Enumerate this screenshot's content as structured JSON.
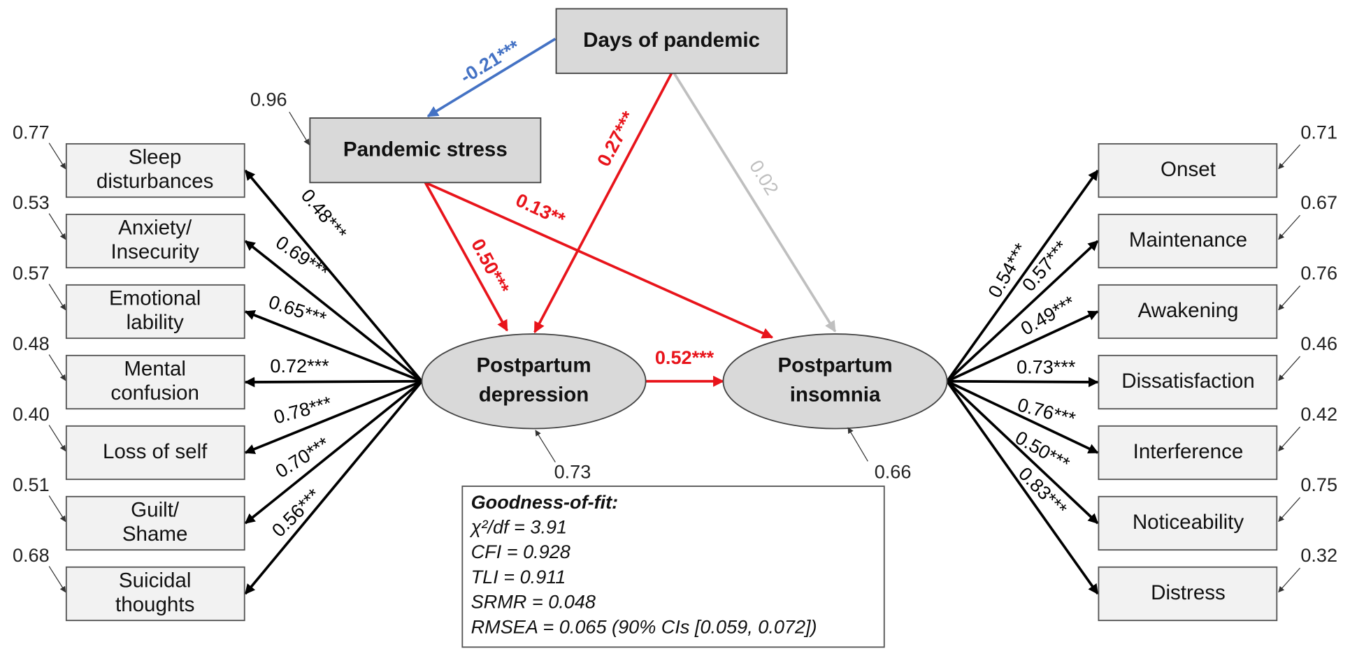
{
  "observed": [
    {
      "label": [
        "Days of pandemic"
      ]
    },
    {
      "label": [
        "Pandemic stress"
      ],
      "residual": "0.96"
    }
  ],
  "latent": [
    {
      "label": [
        "Postpartum",
        "depression"
      ],
      "residual": "0.73"
    },
    {
      "label": [
        "Postpartum",
        "insomnia"
      ],
      "residual": "0.66"
    }
  ],
  "indicators_left": [
    {
      "label": [
        "Sleep",
        "disturbances"
      ],
      "loading": "0.48***",
      "residual": "0.77"
    },
    {
      "label": [
        "Anxiety/",
        "Insecurity"
      ],
      "loading": "0.69***",
      "residual": "0.53"
    },
    {
      "label": [
        "Emotional",
        "lability"
      ],
      "loading": "0.65***",
      "residual": "0.57"
    },
    {
      "label": [
        "Mental",
        "confusion"
      ],
      "loading": "0.72***",
      "residual": "0.48"
    },
    {
      "label": [
        "Loss of self"
      ],
      "loading": "0.78***",
      "residual": "0.40"
    },
    {
      "label": [
        "Guilt/",
        "Shame"
      ],
      "loading": "0.70***",
      "residual": "0.51"
    },
    {
      "label": [
        "Suicidal",
        "thoughts"
      ],
      "loading": "0.56***",
      "residual": "0.68"
    }
  ],
  "indicators_right": [
    {
      "label": [
        "Onset"
      ],
      "loading": "0.54***",
      "residual": "0.71"
    },
    {
      "label": [
        "Maintenance"
      ],
      "loading": "0.57***",
      "residual": "0.67"
    },
    {
      "label": [
        "Awakening"
      ],
      "loading": "0.49***",
      "residual": "0.76"
    },
    {
      "label": [
        "Dissatisfaction"
      ],
      "loading": "0.73***",
      "residual": "0.46"
    },
    {
      "label": [
        "Interference"
      ],
      "loading": "0.76***",
      "residual": "0.42"
    },
    {
      "label": [
        "Noticeability"
      ],
      "loading": "0.50***",
      "residual": "0.75"
    },
    {
      "label": [
        "Distress"
      ],
      "loading": "0.83***",
      "residual": "0.32"
    }
  ],
  "paths": [
    {
      "label": "-0.21***"
    },
    {
      "label": "0.27***"
    },
    {
      "label": "0.02"
    },
    {
      "label": "0.50***"
    },
    {
      "label": "0.13**"
    },
    {
      "label": "0.52***"
    }
  ],
  "fit": {
    "title": "Goodness-of-fit:",
    "lines": [
      "χ²/df = 3.91",
      "CFI = 0.928",
      "TLI = 0.911",
      "SRMR = 0.048",
      "RMSEA = 0.065 (90% CIs [0.059, 0.072])"
    ]
  }
}
